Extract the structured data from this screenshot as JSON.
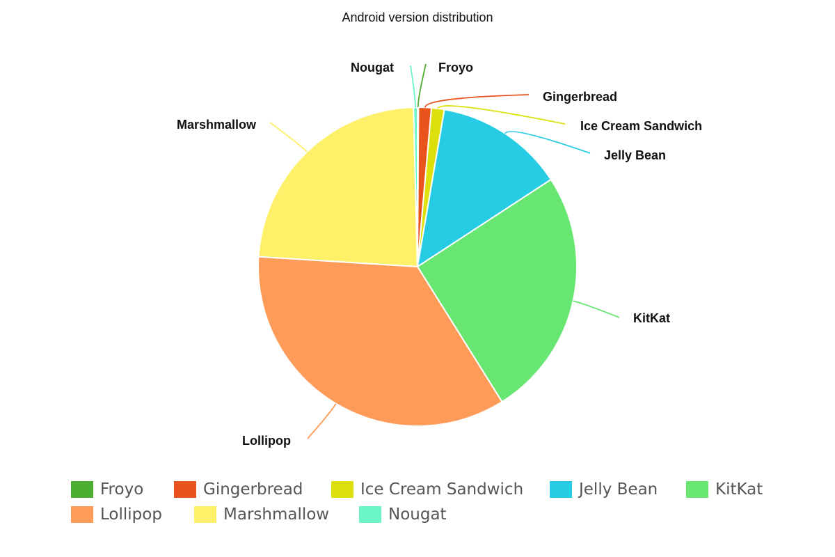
{
  "chart_data": {
    "type": "pie",
    "title": "Android version distribution",
    "start_angle": "top, clockwise",
    "legend_position": "bottom",
    "slices": [
      {
        "label": "Froyo",
        "value": 0.1,
        "color": "#4daf30"
      },
      {
        "label": "Gingerbread",
        "value": 1.3,
        "color": "#e8541c"
      },
      {
        "label": "Ice Cream Sandwich",
        "value": 1.3,
        "color": "#dde00a"
      },
      {
        "label": "Jelly Bean",
        "value": 13.1,
        "color": "#26cce4"
      },
      {
        "label": "KitKat",
        "value": 25.3,
        "color": "#68e672"
      },
      {
        "label": "Lollipop",
        "value": 34.9,
        "color": "#ff9b59"
      },
      {
        "label": "Marshmallow",
        "value": 23.6,
        "color": "#fff06a"
      },
      {
        "label": "Nougat",
        "value": 0.4,
        "color": "#6cf5c8"
      }
    ]
  }
}
